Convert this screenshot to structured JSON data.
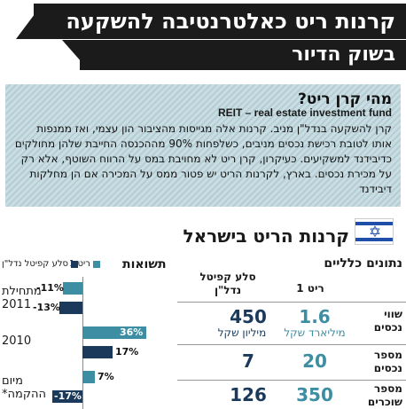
{
  "title": {
    "line1": "קרנות ריט כאלטרנטיבה להשקעה",
    "line2": "בשוק הדיור"
  },
  "info": {
    "heading": "מהי קרן ריט?",
    "subheading": "REIT – real estate investment fund",
    "body": "קרן להשקעה בנדל\"ן מניב. קרנות אלה מגייסות מהציבור הון עצמי, ואז ממנפות אותו לטובת רכישת נכסים מניבים, כשלפחות 90% מההכנסה החייבת שלהן מחולקים כדיבידנד למשקיעים. כעיקרון, קרן ריט לא מחויבת במס על הרווח השוטף, אלא רק על מכירת נכסים. בארץ, לקרנות הריט יש פטור ממס על המכירה אם הן מחלקות דיבידנד"
  },
  "returns": {
    "title": "תשואות",
    "legend": [
      {
        "label": "ריט 1",
        "color": "#3d8ea2"
      },
      {
        "label": "סלע קפיטל נדל\"ן",
        "color": "#1b3a5b"
      }
    ],
    "categories": [
      {
        "label_line1": "מתחילת",
        "label_line2": "2011"
      },
      {
        "label_line1": "2010",
        "label_line2": ""
      },
      {
        "label_line1": "מיום",
        "label_line2": "ההקמה*"
      }
    ]
  },
  "chart_data": {
    "type": "bar",
    "title": "תשואות",
    "categories": [
      "מתחילת 2011",
      "2010",
      "מיום ההקמה*"
    ],
    "series": [
      {
        "name": "ריט 1",
        "color": "#3d8ea2",
        "values": [
          -11,
          36,
          7
        ],
        "labels": [
          "-11%",
          "36%",
          "7%"
        ]
      },
      {
        "name": "סלע קפיטל נדל\"ן",
        "color": "#1b3a5b",
        "values": [
          -13,
          17,
          -17
        ],
        "labels": [
          "-13%",
          "17%",
          "-17%"
        ]
      }
    ]
  },
  "israel": {
    "title": "קרנות הריט בישראל",
    "general": "נתונים כלליים",
    "col1": "ריט 1",
    "col2_line1": "סלע קפיטל",
    "col2_line2": "נדל\"ן",
    "rows": [
      {
        "label_line1": "שווי",
        "label_line2": "נכסים",
        "v1": "1.6",
        "u1": "מיליארד שקל",
        "v2": "450",
        "u2": "מיליון שקל"
      },
      {
        "label_line1": "מספר",
        "label_line2": "נכסים",
        "v1": "20",
        "u1": "",
        "v2": "7",
        "u2": ""
      },
      {
        "label_line1": "מספר",
        "label_line2": "שוכרים",
        "v1": "350",
        "u1": "",
        "v2": "126",
        "u2": ""
      }
    ]
  }
}
